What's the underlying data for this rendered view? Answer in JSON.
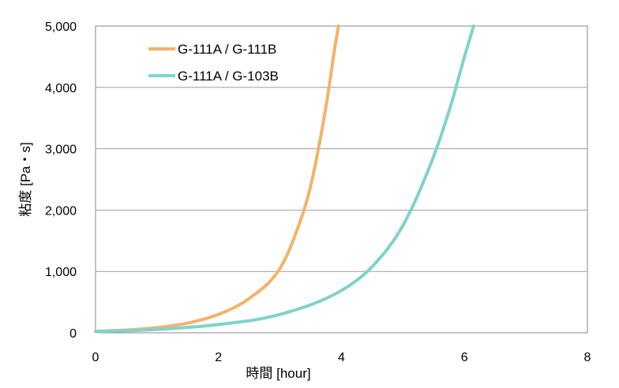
{
  "chart_data": {
    "type": "line",
    "title": "",
    "xlabel": "時間 [hour]",
    "ylabel": "粘度 [Pa・s]",
    "xlim": [
      0,
      8
    ],
    "ylim": [
      0,
      5000
    ],
    "x_ticks": [
      0,
      2,
      4,
      6,
      8
    ],
    "x_tick_labels": [
      "0",
      "2",
      "4",
      "6",
      "8"
    ],
    "y_ticks": [
      0,
      1000,
      2000,
      3000,
      4000,
      5000
    ],
    "y_tick_labels": [
      "0",
      "1,000",
      "2,000",
      "3,000",
      "4,000",
      "5,000"
    ],
    "grid": "horizontal",
    "legend_position": "top-left",
    "series": [
      {
        "name": "G-111A / G-111B",
        "color": "#F2B36B",
        "points": [
          [
            0,
            25
          ],
          [
            0.5,
            45
          ],
          [
            1,
            85
          ],
          [
            1.5,
            160
          ],
          [
            2,
            300
          ],
          [
            2.5,
            560
          ],
          [
            3,
            1050
          ],
          [
            3.25,
            1600
          ],
          [
            3.5,
            2400
          ],
          [
            3.75,
            3700
          ],
          [
            3.9,
            4700
          ],
          [
            3.95,
            5000
          ]
        ]
      },
      {
        "name": "G-111A / G-103B",
        "color": "#7FD3CA",
        "points": [
          [
            0,
            20
          ],
          [
            1,
            55
          ],
          [
            2,
            135
          ],
          [
            3,
            300
          ],
          [
            4,
            690
          ],
          [
            4.5,
            1080
          ],
          [
            5,
            1750
          ],
          [
            5.5,
            2880
          ],
          [
            5.8,
            3780
          ],
          [
            6,
            4500
          ],
          [
            6.15,
            5000
          ]
        ]
      }
    ]
  }
}
